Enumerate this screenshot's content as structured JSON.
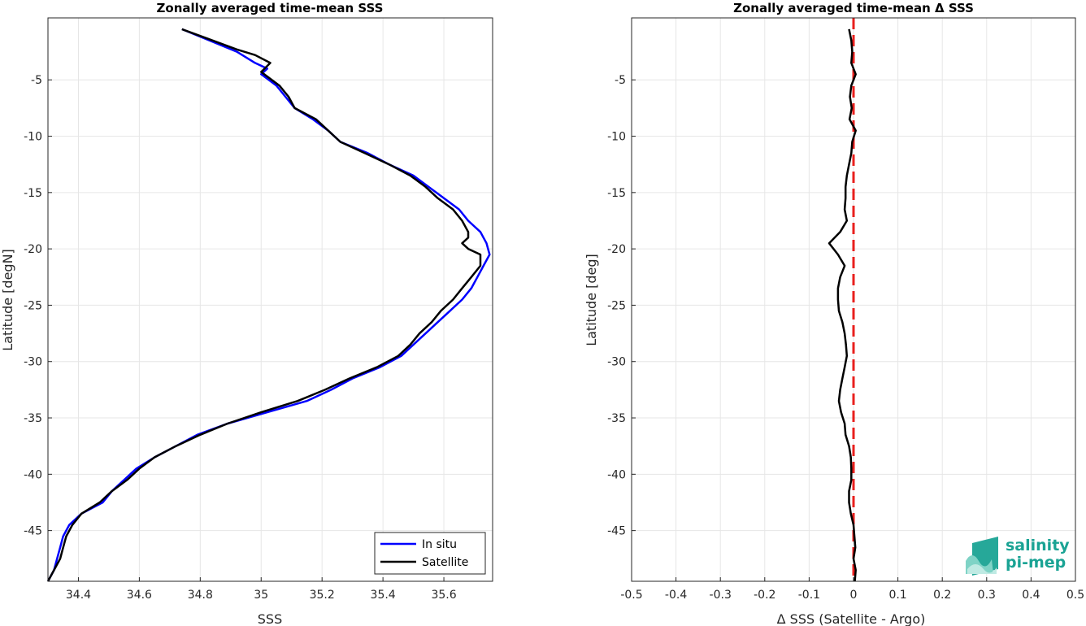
{
  "colors": {
    "in_situ": "#0000ff",
    "satellite": "#000000",
    "zero_line": "#e8201e",
    "grid": "#e6e6e6",
    "logo": "#1aa394"
  },
  "logo": {
    "line1": "salinity",
    "line2": "pi-mep",
    "icon": "salinity-wave-logo-icon"
  },
  "chart_data": [
    {
      "type": "line",
      "title": "Zonally averaged time-mean SSS",
      "xlabel": "SSS",
      "ylabel": "Latitude [degN]",
      "xlim": [
        34.3,
        35.76
      ],
      "ylim": [
        -49.5,
        0.5
      ],
      "xticks": [
        "34.4",
        "34.6",
        "34.8",
        "35",
        "35.2",
        "35.4",
        "35.6"
      ],
      "xtick_values": [
        34.4,
        34.6,
        34.8,
        35.0,
        35.2,
        35.4,
        35.6
      ],
      "yticks": [
        "-5",
        "-10",
        "-15",
        "-20",
        "-25",
        "-30",
        "-35",
        "-40",
        "-45"
      ],
      "ytick_values": [
        -5,
        -10,
        -15,
        -20,
        -25,
        -30,
        -35,
        -40,
        -45
      ],
      "grid": true,
      "legend_position": "bottom-right",
      "series": [
        {
          "name": "In situ",
          "color": "#0000ff",
          "points": [
            [
              34.74,
              -0.5
            ],
            [
              34.83,
              -1.5
            ],
            [
              34.92,
              -2.5
            ],
            [
              34.98,
              -3.5
            ],
            [
              35.02,
              -4.0
            ],
            [
              35.0,
              -4.5
            ],
            [
              35.05,
              -5.5
            ],
            [
              35.08,
              -6.5
            ],
            [
              35.11,
              -7.5
            ],
            [
              35.17,
              -8.5
            ],
            [
              35.22,
              -9.5
            ],
            [
              35.26,
              -10.5
            ],
            [
              35.35,
              -11.5
            ],
            [
              35.42,
              -12.5
            ],
            [
              35.5,
              -13.5
            ],
            [
              35.55,
              -14.5
            ],
            [
              35.6,
              -15.5
            ],
            [
              35.65,
              -16.5
            ],
            [
              35.68,
              -17.5
            ],
            [
              35.72,
              -18.5
            ],
            [
              35.74,
              -19.5
            ],
            [
              35.75,
              -20.5
            ],
            [
              35.73,
              -21.5
            ],
            [
              35.71,
              -22.5
            ],
            [
              35.69,
              -23.5
            ],
            [
              35.66,
              -24.5
            ],
            [
              35.62,
              -25.5
            ],
            [
              35.58,
              -26.5
            ],
            [
              35.54,
              -27.5
            ],
            [
              35.5,
              -28.5
            ],
            [
              35.46,
              -29.5
            ],
            [
              35.39,
              -30.5
            ],
            [
              35.3,
              -31.5
            ],
            [
              35.23,
              -32.5
            ],
            [
              35.15,
              -33.5
            ],
            [
              35.02,
              -34.5
            ],
            [
              34.89,
              -35.5
            ],
            [
              34.79,
              -36.5
            ],
            [
              34.72,
              -37.5
            ],
            [
              34.65,
              -38.5
            ],
            [
              34.59,
              -39.5
            ],
            [
              34.55,
              -40.5
            ],
            [
              34.51,
              -41.5
            ],
            [
              34.48,
              -42.5
            ],
            [
              34.41,
              -43.5
            ],
            [
              34.37,
              -44.5
            ],
            [
              34.35,
              -45.5
            ],
            [
              34.34,
              -46.5
            ],
            [
              34.33,
              -47.5
            ],
            [
              34.32,
              -48.5
            ],
            [
              34.3,
              -49.5
            ]
          ]
        },
        {
          "name": "Satellite",
          "color": "#000000",
          "points": [
            [
              34.74,
              -0.5
            ],
            [
              34.84,
              -1.5
            ],
            [
              34.92,
              -2.3
            ],
            [
              34.98,
              -2.8
            ],
            [
              35.03,
              -3.5
            ],
            [
              35.0,
              -4.3
            ],
            [
              35.06,
              -5.5
            ],
            [
              35.09,
              -6.5
            ],
            [
              35.11,
              -7.5
            ],
            [
              35.18,
              -8.5
            ],
            [
              35.22,
              -9.5
            ],
            [
              35.26,
              -10.5
            ],
            [
              35.34,
              -11.5
            ],
            [
              35.42,
              -12.5
            ],
            [
              35.49,
              -13.5
            ],
            [
              35.54,
              -14.5
            ],
            [
              35.58,
              -15.5
            ],
            [
              35.63,
              -16.5
            ],
            [
              35.66,
              -17.5
            ],
            [
              35.68,
              -18.5
            ],
            [
              35.68,
              -19.0
            ],
            [
              35.66,
              -19.5
            ],
            [
              35.68,
              -20.0
            ],
            [
              35.72,
              -20.5
            ],
            [
              35.72,
              -21.5
            ],
            [
              35.69,
              -22.5
            ],
            [
              35.66,
              -23.5
            ],
            [
              35.63,
              -24.5
            ],
            [
              35.59,
              -25.5
            ],
            [
              35.56,
              -26.5
            ],
            [
              35.52,
              -27.5
            ],
            [
              35.49,
              -28.5
            ],
            [
              35.45,
              -29.5
            ],
            [
              35.38,
              -30.5
            ],
            [
              35.29,
              -31.5
            ],
            [
              35.21,
              -32.5
            ],
            [
              35.12,
              -33.5
            ],
            [
              35.0,
              -34.5
            ],
            [
              34.89,
              -35.5
            ],
            [
              34.8,
              -36.5
            ],
            [
              34.72,
              -37.5
            ],
            [
              34.65,
              -38.5
            ],
            [
              34.6,
              -39.5
            ],
            [
              34.56,
              -40.5
            ],
            [
              34.51,
              -41.5
            ],
            [
              34.47,
              -42.5
            ],
            [
              34.41,
              -43.5
            ],
            [
              34.38,
              -44.5
            ],
            [
              34.36,
              -45.5
            ],
            [
              34.35,
              -46.5
            ],
            [
              34.34,
              -47.5
            ],
            [
              34.32,
              -48.5
            ],
            [
              34.3,
              -49.5
            ]
          ]
        }
      ]
    },
    {
      "type": "line",
      "title": "Zonally averaged time-mean Δ SSS",
      "xlabel": "Δ SSS (Satellite - Argo)",
      "ylabel": "Latitude [deg]",
      "xlim": [
        -0.5,
        0.5
      ],
      "ylim": [
        -49.5,
        0.5
      ],
      "xticks": [
        "-0.5",
        "-0.4",
        "-0.3",
        "-0.2",
        "-0.1",
        "0",
        "0.1",
        "0.2",
        "0.3",
        "0.4",
        "0.5"
      ],
      "xtick_values": [
        -0.5,
        -0.4,
        -0.3,
        -0.2,
        -0.1,
        0,
        0.1,
        0.2,
        0.3,
        0.4,
        0.5
      ],
      "yticks": [
        "-5",
        "-10",
        "-15",
        "-20",
        "-25",
        "-30",
        "-35",
        "-40",
        "-45"
      ],
      "ytick_values": [
        -5,
        -10,
        -15,
        -20,
        -25,
        -30,
        -35,
        -40,
        -45
      ],
      "grid": true,
      "reference_line": {
        "x": 0,
        "style": "dashed",
        "color": "#e8201e"
      },
      "series": [
        {
          "color": "#000000",
          "points": [
            [
              -0.01,
              -0.5
            ],
            [
              -0.005,
              -1.5
            ],
            [
              -0.003,
              -2.5
            ],
            [
              -0.005,
              -3.5
            ],
            [
              0.005,
              -4.5
            ],
            [
              -0.005,
              -5.5
            ],
            [
              -0.008,
              -6.5
            ],
            [
              -0.004,
              -7.5
            ],
            [
              -0.009,
              -8.5
            ],
            [
              0.005,
              -9.5
            ],
            [
              -0.003,
              -10.5
            ],
            [
              -0.005,
              -11.5
            ],
            [
              -0.01,
              -12.5
            ],
            [
              -0.015,
              -13.5
            ],
            [
              -0.018,
              -14.5
            ],
            [
              -0.018,
              -15.5
            ],
            [
              -0.02,
              -16.5
            ],
            [
              -0.015,
              -17.5
            ],
            [
              -0.03,
              -18.5
            ],
            [
              -0.055,
              -19.5
            ],
            [
              -0.035,
              -20.5
            ],
            [
              -0.02,
              -21.5
            ],
            [
              -0.03,
              -22.5
            ],
            [
              -0.035,
              -23.5
            ],
            [
              -0.035,
              -24.5
            ],
            [
              -0.033,
              -25.5
            ],
            [
              -0.025,
              -26.5
            ],
            [
              -0.02,
              -27.5
            ],
            [
              -0.017,
              -28.5
            ],
            [
              -0.015,
              -29.5
            ],
            [
              -0.02,
              -30.5
            ],
            [
              -0.025,
              -31.5
            ],
            [
              -0.03,
              -32.5
            ],
            [
              -0.033,
              -33.5
            ],
            [
              -0.028,
              -34.5
            ],
            [
              -0.02,
              -35.5
            ],
            [
              -0.018,
              -36.5
            ],
            [
              -0.01,
              -37.5
            ],
            [
              -0.006,
              -38.5
            ],
            [
              -0.005,
              -39.5
            ],
            [
              -0.005,
              -40.5
            ],
            [
              -0.01,
              -41.5
            ],
            [
              -0.01,
              -42.5
            ],
            [
              -0.006,
              -43.5
            ],
            [
              0.0,
              -44.5
            ],
            [
              0.002,
              -45.5
            ],
            [
              0.004,
              -46.5
            ],
            [
              0.0,
              -47.5
            ],
            [
              0.005,
              -48.5
            ],
            [
              0.003,
              -49.5
            ]
          ]
        }
      ]
    }
  ]
}
